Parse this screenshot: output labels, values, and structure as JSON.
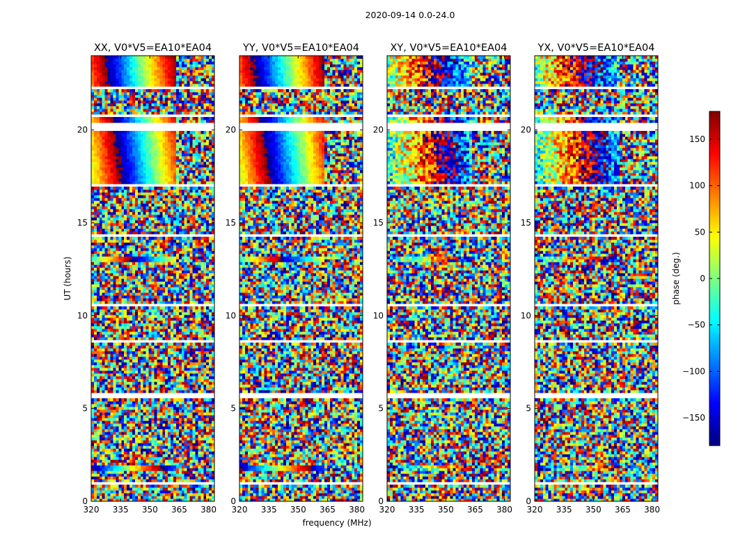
{
  "chart_data": {
    "type": "heatmap",
    "suptitle": "2020-09-14 0.0-24.0",
    "panels": [
      {
        "name": "XX",
        "title": "XX, V0*V5=EA10*EA04"
      },
      {
        "name": "YY",
        "title": "YY, V0*V5=EA10*EA04"
      },
      {
        "name": "XY",
        "title": "XY, V0*V5=EA10*EA04"
      },
      {
        "name": "YX",
        "title": "YX, V0*V5=EA10*EA04"
      }
    ],
    "xlabel": "frequency (MHz)",
    "ylabel": "UT (hours)",
    "xlim": [
      320,
      383
    ],
    "ylim": [
      0,
      24
    ],
    "xticks": [
      320,
      335,
      350,
      365,
      380
    ],
    "yticks": [
      0,
      5,
      10,
      15,
      20
    ],
    "colorbar": {
      "label": "phase (deg.)",
      "range": [
        -180,
        180
      ],
      "ticks": [
        -150,
        -100,
        -50,
        0,
        50,
        100,
        150
      ],
      "tick_labels": [
        "−150",
        "−100",
        "−50",
        "0",
        "50",
        "100",
        "150"
      ],
      "colormap": "jet",
      "colors": [
        "#00007f",
        "#0000ff",
        "#007fff",
        "#00ffff",
        "#7fff7f",
        "#ffff00",
        "#ff7f00",
        "#ff0000",
        "#7f0000"
      ]
    },
    "gaps_ut": [
      [
        0.95,
        1.0
      ],
      [
        1.9,
        1.98
      ],
      [
        5.55,
        5.8
      ],
      [
        8.6,
        8.72
      ],
      [
        10.5,
        10.62
      ],
      [
        14.25,
        14.4
      ],
      [
        17.0,
        17.12
      ],
      [
        19.95,
        20.35
      ],
      [
        20.65,
        20.85
      ],
      [
        22.2,
        22.3
      ]
    ],
    "coherent_ut": [
      [
        1.6,
        1.9
      ],
      [
        12.85,
        13.25
      ],
      [
        17.1,
        20.8
      ],
      [
        22.3,
        24.0
      ]
    ]
  }
}
